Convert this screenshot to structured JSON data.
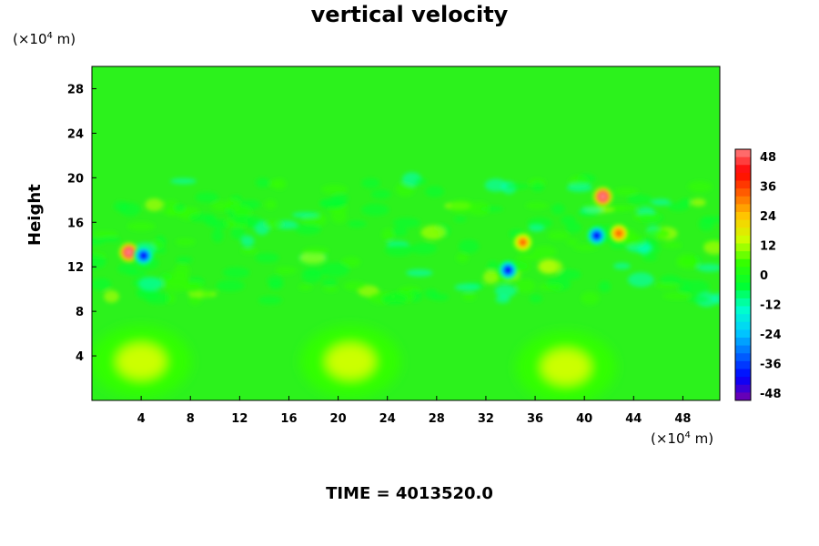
{
  "chart_data": {
    "type": "heatmap",
    "title": "vertical velocity",
    "ylabel": "Height",
    "xlabel": "",
    "x_unit": "(×10⁴ m)",
    "y_unit": "(×10⁴ m)",
    "x_ticks": [
      4,
      8,
      12,
      16,
      20,
      24,
      28,
      32,
      36,
      40,
      44,
      48
    ],
    "y_ticks": [
      4,
      8,
      12,
      16,
      20,
      24,
      28
    ],
    "xlim": [
      0,
      51
    ],
    "ylim": [
      0,
      30
    ],
    "colorbar": {
      "ticks": [
        48,
        36,
        24,
        12,
        0,
        -12,
        -24,
        -36,
        -48
      ],
      "range": [
        -48,
        48
      ],
      "colors": [
        "#7a00a8",
        "#0000ff",
        "#0066ff",
        "#00ccff",
        "#00ffcc",
        "#00ff33",
        "#33ff00",
        "#ccff00",
        "#ffcc00",
        "#ff6600",
        "#ff0000",
        "#ff8080"
      ]
    },
    "field_features": [
      {
        "x": 3.0,
        "y": 13.3,
        "value": 44
      },
      {
        "x": 4.2,
        "y": 13.0,
        "value": -40
      },
      {
        "x": 41.5,
        "y": 18.3,
        "value": 44
      },
      {
        "x": 41.0,
        "y": 14.8,
        "value": -36
      },
      {
        "x": 42.8,
        "y": 15.0,
        "value": 30
      },
      {
        "x": 35.0,
        "y": 14.2,
        "value": 28
      },
      {
        "x": 33.8,
        "y": 11.7,
        "value": -40
      },
      {
        "x": 4.0,
        "y": 3.5,
        "value": 10
      },
      {
        "x": 21.0,
        "y": 3.5,
        "value": 10
      },
      {
        "x": 38.5,
        "y": 3.0,
        "value": 10
      }
    ]
  },
  "footer": {
    "time_label": "TIME = 4013520.0"
  }
}
